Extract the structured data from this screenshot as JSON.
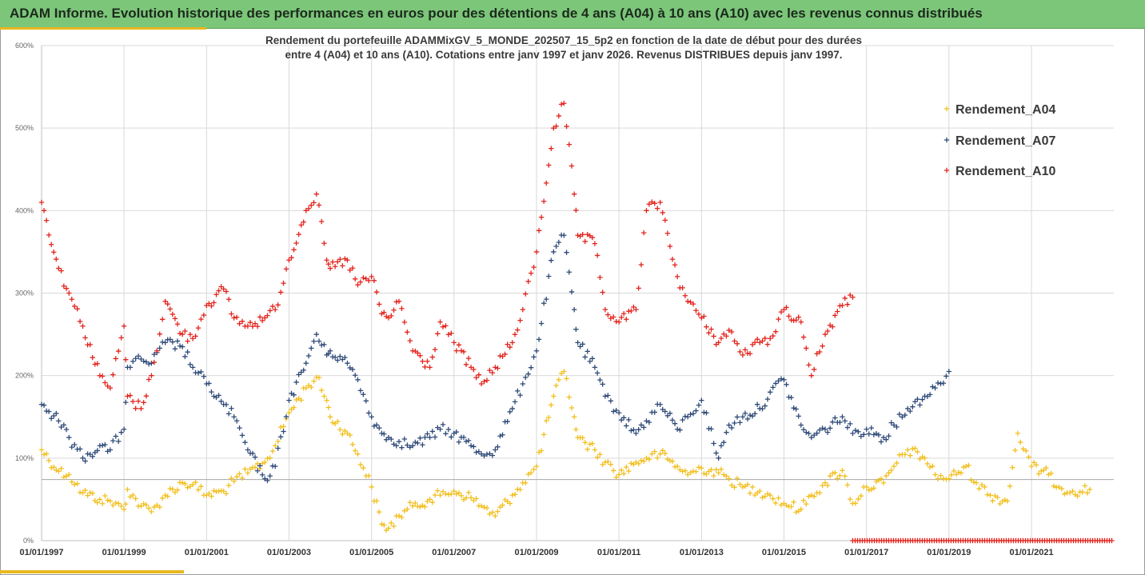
{
  "header": {
    "title": "ADAM Informe. Evolution historique des performances en euros pour des détentions de 4 ans (A04) à 10 ans (A10) avec les revenus connus distribués"
  },
  "chart_data": {
    "type": "scatter",
    "title_line1": "Rendement du portefeuille ADAMMixGV_5_MONDE_202507_15_5p2 en fonction de la date de début pour des durées",
    "title_line2": "entre 4 (A04) et 10 ans (A10). Cotations entre janv 1997 et janv 2026. Revenus DISTRIBUES depuis janv 1997.",
    "x_type": "date",
    "xlim": [
      "1997-01-01",
      "2022-12-31"
    ],
    "x_tick_labels": [
      "01/01/1997",
      "01/01/1999",
      "01/01/2001",
      "01/01/2003",
      "01/01/2005",
      "01/01/2007",
      "01/01/2009",
      "01/01/2011",
      "01/01/2013",
      "01/01/2015",
      "01/01/2017",
      "01/01/2019",
      "01/01/2021"
    ],
    "ylim": [
      0,
      600
    ],
    "y_unit": "%",
    "y_tick_labels": [
      "0%",
      "100%",
      "200%",
      "300%",
      "400%",
      "500%",
      "600%"
    ],
    "reference_line_y": 74,
    "legend_position": "top-right",
    "grid": true,
    "marker": "+",
    "series": [
      {
        "name": "Rendement_A04",
        "color": "#f2bf1e",
        "points": [
          [
            "1997-01-01",
            110
          ],
          [
            "1997-06-01",
            84
          ],
          [
            "1997-09-01",
            80
          ],
          [
            "1998-01-01",
            58
          ],
          [
            "1998-06-01",
            50
          ],
          [
            "1998-09-01",
            48
          ],
          [
            "1999-01-01",
            38
          ],
          [
            "1999-02-01",
            62
          ],
          [
            "1999-06-01",
            42
          ],
          [
            "1999-09-01",
            35
          ],
          [
            "2000-01-01",
            55
          ],
          [
            "2000-06-01",
            70
          ],
          [
            "2000-09-01",
            68
          ],
          [
            "2001-01-01",
            55
          ],
          [
            "2001-06-01",
            60
          ],
          [
            "2001-09-01",
            72
          ],
          [
            "2002-01-01",
            82
          ],
          [
            "2002-06-01",
            95
          ],
          [
            "2002-09-01",
            115
          ],
          [
            "2003-01-01",
            155
          ],
          [
            "2003-06-01",
            185
          ],
          [
            "2003-09-01",
            198
          ],
          [
            "2003-12-01",
            170
          ],
          [
            "2004-01-01",
            150
          ],
          [
            "2004-06-01",
            130
          ],
          [
            "2004-09-01",
            105
          ],
          [
            "2005-01-01",
            65
          ],
          [
            "2005-04-01",
            20
          ],
          [
            "2005-06-01",
            15
          ],
          [
            "2005-09-01",
            30
          ],
          [
            "2006-01-01",
            42
          ],
          [
            "2006-06-01",
            50
          ],
          [
            "2006-09-01",
            55
          ],
          [
            "2007-01-01",
            60
          ],
          [
            "2007-06-01",
            52
          ],
          [
            "2007-09-01",
            42
          ],
          [
            "2008-01-01",
            30
          ],
          [
            "2008-06-01",
            55
          ],
          [
            "2008-09-01",
            70
          ],
          [
            "2009-01-01",
            90
          ],
          [
            "2009-06-01",
            175
          ],
          [
            "2009-09-01",
            205
          ],
          [
            "2009-12-01",
            150
          ],
          [
            "2010-01-01",
            125
          ],
          [
            "2010-06-01",
            110
          ],
          [
            "2010-09-01",
            95
          ],
          [
            "2011-01-01",
            80
          ],
          [
            "2011-06-01",
            95
          ],
          [
            "2011-09-01",
            100
          ],
          [
            "2012-01-01",
            105
          ],
          [
            "2012-06-01",
            90
          ],
          [
            "2012-09-01",
            80
          ],
          [
            "2013-01-01",
            88
          ],
          [
            "2013-06-01",
            82
          ],
          [
            "2013-09-01",
            75
          ],
          [
            "2014-01-01",
            65
          ],
          [
            "2014-06-01",
            60
          ],
          [
            "2014-09-01",
            55
          ],
          [
            "2015-01-01",
            45
          ],
          [
            "2015-06-01",
            38
          ],
          [
            "2015-09-01",
            55
          ],
          [
            "2016-01-01",
            70
          ],
          [
            "2016-06-01",
            85
          ],
          [
            "2016-09-01",
            45
          ],
          [
            "2017-01-01",
            65
          ],
          [
            "2017-06-01",
            70
          ],
          [
            "2017-09-01",
            90
          ],
          [
            "2018-01-01",
            110
          ],
          [
            "2018-06-01",
            100
          ],
          [
            "2018-09-01",
            80
          ],
          [
            "2019-01-01",
            75
          ],
          [
            "2019-06-01",
            90
          ],
          [
            "2019-09-01",
            70
          ],
          [
            "2020-01-01",
            55
          ],
          [
            "2020-06-01",
            48
          ],
          [
            "2020-09-01",
            130
          ],
          [
            "2021-01-01",
            90
          ],
          [
            "2021-06-01",
            80
          ],
          [
            "2021-09-01",
            65
          ],
          [
            "2022-01-01",
            60
          ],
          [
            "2022-06-01",
            62
          ]
        ]
      },
      {
        "name": "Rendement_A07",
        "color": "#2f4a78",
        "points": [
          [
            "1997-01-01",
            165
          ],
          [
            "1997-06-01",
            145
          ],
          [
            "1997-09-01",
            125
          ],
          [
            "1998-01-01",
            100
          ],
          [
            "1998-06-01",
            115
          ],
          [
            "1998-09-01",
            110
          ],
          [
            "1999-01-01",
            135
          ],
          [
            "1999-02-01",
            210
          ],
          [
            "1999-06-01",
            220
          ],
          [
            "1999-09-01",
            215
          ],
          [
            "2000-01-01",
            240
          ],
          [
            "2000-06-01",
            235
          ],
          [
            "2000-09-01",
            210
          ],
          [
            "2001-01-01",
            190
          ],
          [
            "2001-06-01",
            165
          ],
          [
            "2001-09-01",
            150
          ],
          [
            "2002-01-01",
            110
          ],
          [
            "2002-06-01",
            75
          ],
          [
            "2002-09-01",
            90
          ],
          [
            "2003-01-01",
            170
          ],
          [
            "2003-06-01",
            215
          ],
          [
            "2003-09-01",
            250
          ],
          [
            "2003-12-01",
            225
          ],
          [
            "2004-01-01",
            230
          ],
          [
            "2004-06-01",
            215
          ],
          [
            "2004-09-01",
            195
          ],
          [
            "2005-01-01",
            150
          ],
          [
            "2005-04-01",
            130
          ],
          [
            "2005-06-01",
            125
          ],
          [
            "2005-09-01",
            120
          ],
          [
            "2006-01-01",
            115
          ],
          [
            "2006-06-01",
            125
          ],
          [
            "2006-09-01",
            135
          ],
          [
            "2007-01-01",
            130
          ],
          [
            "2007-06-01",
            115
          ],
          [
            "2007-09-01",
            105
          ],
          [
            "2008-01-01",
            110
          ],
          [
            "2008-06-01",
            160
          ],
          [
            "2008-09-01",
            190
          ],
          [
            "2009-01-01",
            230
          ],
          [
            "2009-06-01",
            350
          ],
          [
            "2009-09-01",
            370
          ],
          [
            "2009-12-01",
            280
          ],
          [
            "2010-01-01",
            240
          ],
          [
            "2010-06-01",
            210
          ],
          [
            "2010-09-01",
            175
          ],
          [
            "2011-01-01",
            155
          ],
          [
            "2011-06-01",
            130
          ],
          [
            "2011-09-01",
            145
          ],
          [
            "2012-01-01",
            165
          ],
          [
            "2012-06-01",
            135
          ],
          [
            "2012-09-01",
            150
          ],
          [
            "2013-01-01",
            170
          ],
          [
            "2013-06-01",
            100
          ],
          [
            "2013-09-01",
            140
          ],
          [
            "2014-01-01",
            150
          ],
          [
            "2014-06-01",
            160
          ],
          [
            "2014-09-01",
            180
          ],
          [
            "2015-01-01",
            195
          ],
          [
            "2015-06-01",
            140
          ],
          [
            "2015-09-01",
            125
          ],
          [
            "2016-01-01",
            135
          ],
          [
            "2016-06-01",
            150
          ],
          [
            "2016-09-01",
            130
          ],
          [
            "2017-01-01",
            135
          ],
          [
            "2017-06-01",
            125
          ],
          [
            "2017-09-01",
            140
          ],
          [
            "2018-01-01",
            160
          ],
          [
            "2018-06-01",
            175
          ],
          [
            "2018-09-01",
            185
          ],
          [
            "2019-01-01",
            205
          ]
        ]
      },
      {
        "name": "Rendement_A10",
        "color": "#e3231c",
        "points": [
          [
            "1997-01-01",
            410
          ],
          [
            "1997-06-01",
            330
          ],
          [
            "1997-09-01",
            300
          ],
          [
            "1998-01-01",
            260
          ],
          [
            "1998-06-01",
            200
          ],
          [
            "1998-09-01",
            185
          ],
          [
            "1999-01-01",
            260
          ],
          [
            "1999-02-01",
            175
          ],
          [
            "1999-06-01",
            160
          ],
          [
            "1999-09-01",
            200
          ],
          [
            "2000-01-01",
            290
          ],
          [
            "2000-06-01",
            250
          ],
          [
            "2000-09-01",
            245
          ],
          [
            "2001-01-01",
            285
          ],
          [
            "2001-06-01",
            305
          ],
          [
            "2001-09-01",
            270
          ],
          [
            "2002-01-01",
            260
          ],
          [
            "2002-06-01",
            270
          ],
          [
            "2002-09-01",
            280
          ],
          [
            "2003-01-01",
            340
          ],
          [
            "2003-06-01",
            400
          ],
          [
            "2003-09-01",
            420
          ],
          [
            "2003-12-01",
            340
          ],
          [
            "2004-01-01",
            330
          ],
          [
            "2004-06-01",
            340
          ],
          [
            "2004-09-01",
            310
          ],
          [
            "2005-01-01",
            320
          ],
          [
            "2005-04-01",
            275
          ],
          [
            "2005-06-01",
            270
          ],
          [
            "2005-09-01",
            290
          ],
          [
            "2006-01-01",
            230
          ],
          [
            "2006-06-01",
            210
          ],
          [
            "2006-09-01",
            265
          ],
          [
            "2007-01-01",
            240
          ],
          [
            "2007-06-01",
            210
          ],
          [
            "2007-09-01",
            190
          ],
          [
            "2008-01-01",
            210
          ],
          [
            "2008-06-01",
            240
          ],
          [
            "2008-09-01",
            280
          ],
          [
            "2009-01-01",
            350
          ],
          [
            "2009-06-01",
            500
          ],
          [
            "2009-09-01",
            530
          ],
          [
            "2009-12-01",
            420
          ],
          [
            "2010-01-01",
            370
          ],
          [
            "2010-06-01",
            360
          ],
          [
            "2010-09-01",
            280
          ],
          [
            "2011-01-01",
            265
          ],
          [
            "2011-06-01",
            280
          ],
          [
            "2011-09-01",
            400
          ],
          [
            "2012-01-01",
            410
          ],
          [
            "2012-06-01",
            320
          ],
          [
            "2012-09-01",
            290
          ],
          [
            "2013-01-01",
            270
          ],
          [
            "2013-06-01",
            240
          ],
          [
            "2013-09-01",
            255
          ],
          [
            "2014-01-01",
            225
          ],
          [
            "2014-06-01",
            240
          ],
          [
            "2014-09-01",
            245
          ],
          [
            "2015-01-01",
            280
          ],
          [
            "2015-06-01",
            265
          ],
          [
            "2015-09-01",
            200
          ],
          [
            "2016-01-01",
            250
          ],
          [
            "2016-06-01",
            285
          ],
          [
            "2016-09-01",
            295
          ]
        ]
      }
    ],
    "zero_band": {
      "color": "#e3231c",
      "from": "2016-09-01",
      "to": "2022-12-31",
      "y": 0
    }
  }
}
